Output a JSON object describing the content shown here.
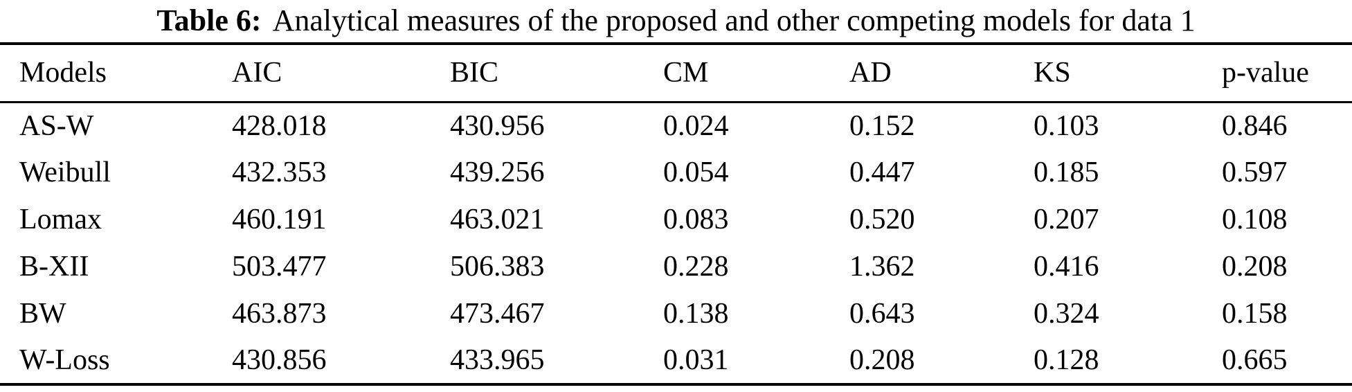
{
  "caption": {
    "label": "Table 6:",
    "text": "Analytical measures of the proposed and other competing models for data 1"
  },
  "table": {
    "columns": [
      "Models",
      "AIC",
      "BIC",
      "CM",
      "AD",
      "KS",
      "p-value"
    ],
    "rows": [
      [
        "AS-W",
        "428.018",
        "430.956",
        "0.024",
        "0.152",
        "0.103",
        "0.846"
      ],
      [
        "Weibull",
        "432.353",
        "439.256",
        "0.054",
        "0.447",
        "0.185",
        "0.597"
      ],
      [
        "Lomax",
        "460.191",
        "463.021",
        "0.083",
        "0.520",
        "0.207",
        "0.108"
      ],
      [
        "B-XII",
        "503.477",
        "506.383",
        "0.228",
        "1.362",
        "0.416",
        "0.208"
      ],
      [
        "BW",
        "463.873",
        "473.467",
        "0.138",
        "0.643",
        "0.324",
        "0.158"
      ],
      [
        "W-Loss",
        "430.856",
        "433.965",
        "0.031",
        "0.208",
        "0.128",
        "0.665"
      ]
    ]
  },
  "colors": {
    "text": "#000000",
    "background": "#ffffff",
    "rule": "#000000"
  }
}
